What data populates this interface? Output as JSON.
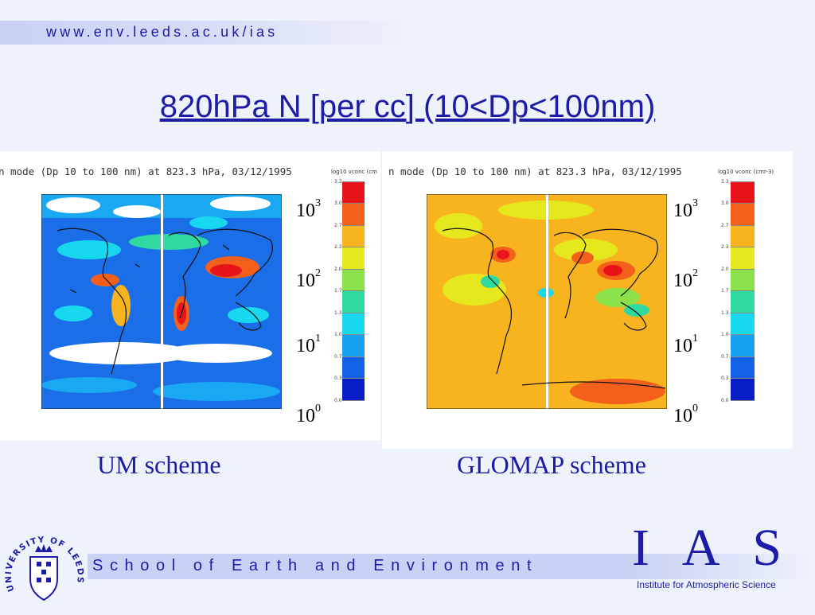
{
  "header": {
    "url": "www.env.leeds.ac.uk/ias"
  },
  "title": "820hPa N [per cc] (10<Dp<100nm)",
  "panels": {
    "left": {
      "header": "n mode (Dp 10 to 100 nm) at    823.3 hPa, 03/12/1995",
      "colorbar_unit": "log10 vconc (cm",
      "caption": "UM scheme"
    },
    "right": {
      "header": "n mode (Dp 10 to 100 nm) at    823.3 hPa, 03/12/1995",
      "colorbar_unit": "log10 vconc (cmr-3)",
      "caption": "GLOMAP scheme"
    }
  },
  "colorbar": {
    "ticks": [
      "3.3",
      "3.0",
      "2.7",
      "2.3",
      "2.0",
      "1.7",
      "1.3",
      "1.0",
      "0.7",
      "0.3",
      "0.0"
    ],
    "colors": [
      "#e8141a",
      "#f2601c",
      "#f8b41e",
      "#e6e81e",
      "#8ae14a",
      "#2fd9a0",
      "#18d8f0",
      "#1aa0f0",
      "#1462e6",
      "#0a1ec8",
      "#ffffff"
    ],
    "powers": [
      {
        "base": "10",
        "exp": "3"
      },
      {
        "base": "10",
        "exp": "2"
      },
      {
        "base": "10",
        "exp": "1"
      },
      {
        "base": "10",
        "exp": "0"
      }
    ]
  },
  "footer": {
    "school": "School of Earth and Environment",
    "ias": "I A S",
    "ias_full": "Institute for Atmospheric Science",
    "crest_text": "UNIVERSITY OF LEEDS"
  },
  "icons": {
    "crest": "university-crest-icon"
  }
}
